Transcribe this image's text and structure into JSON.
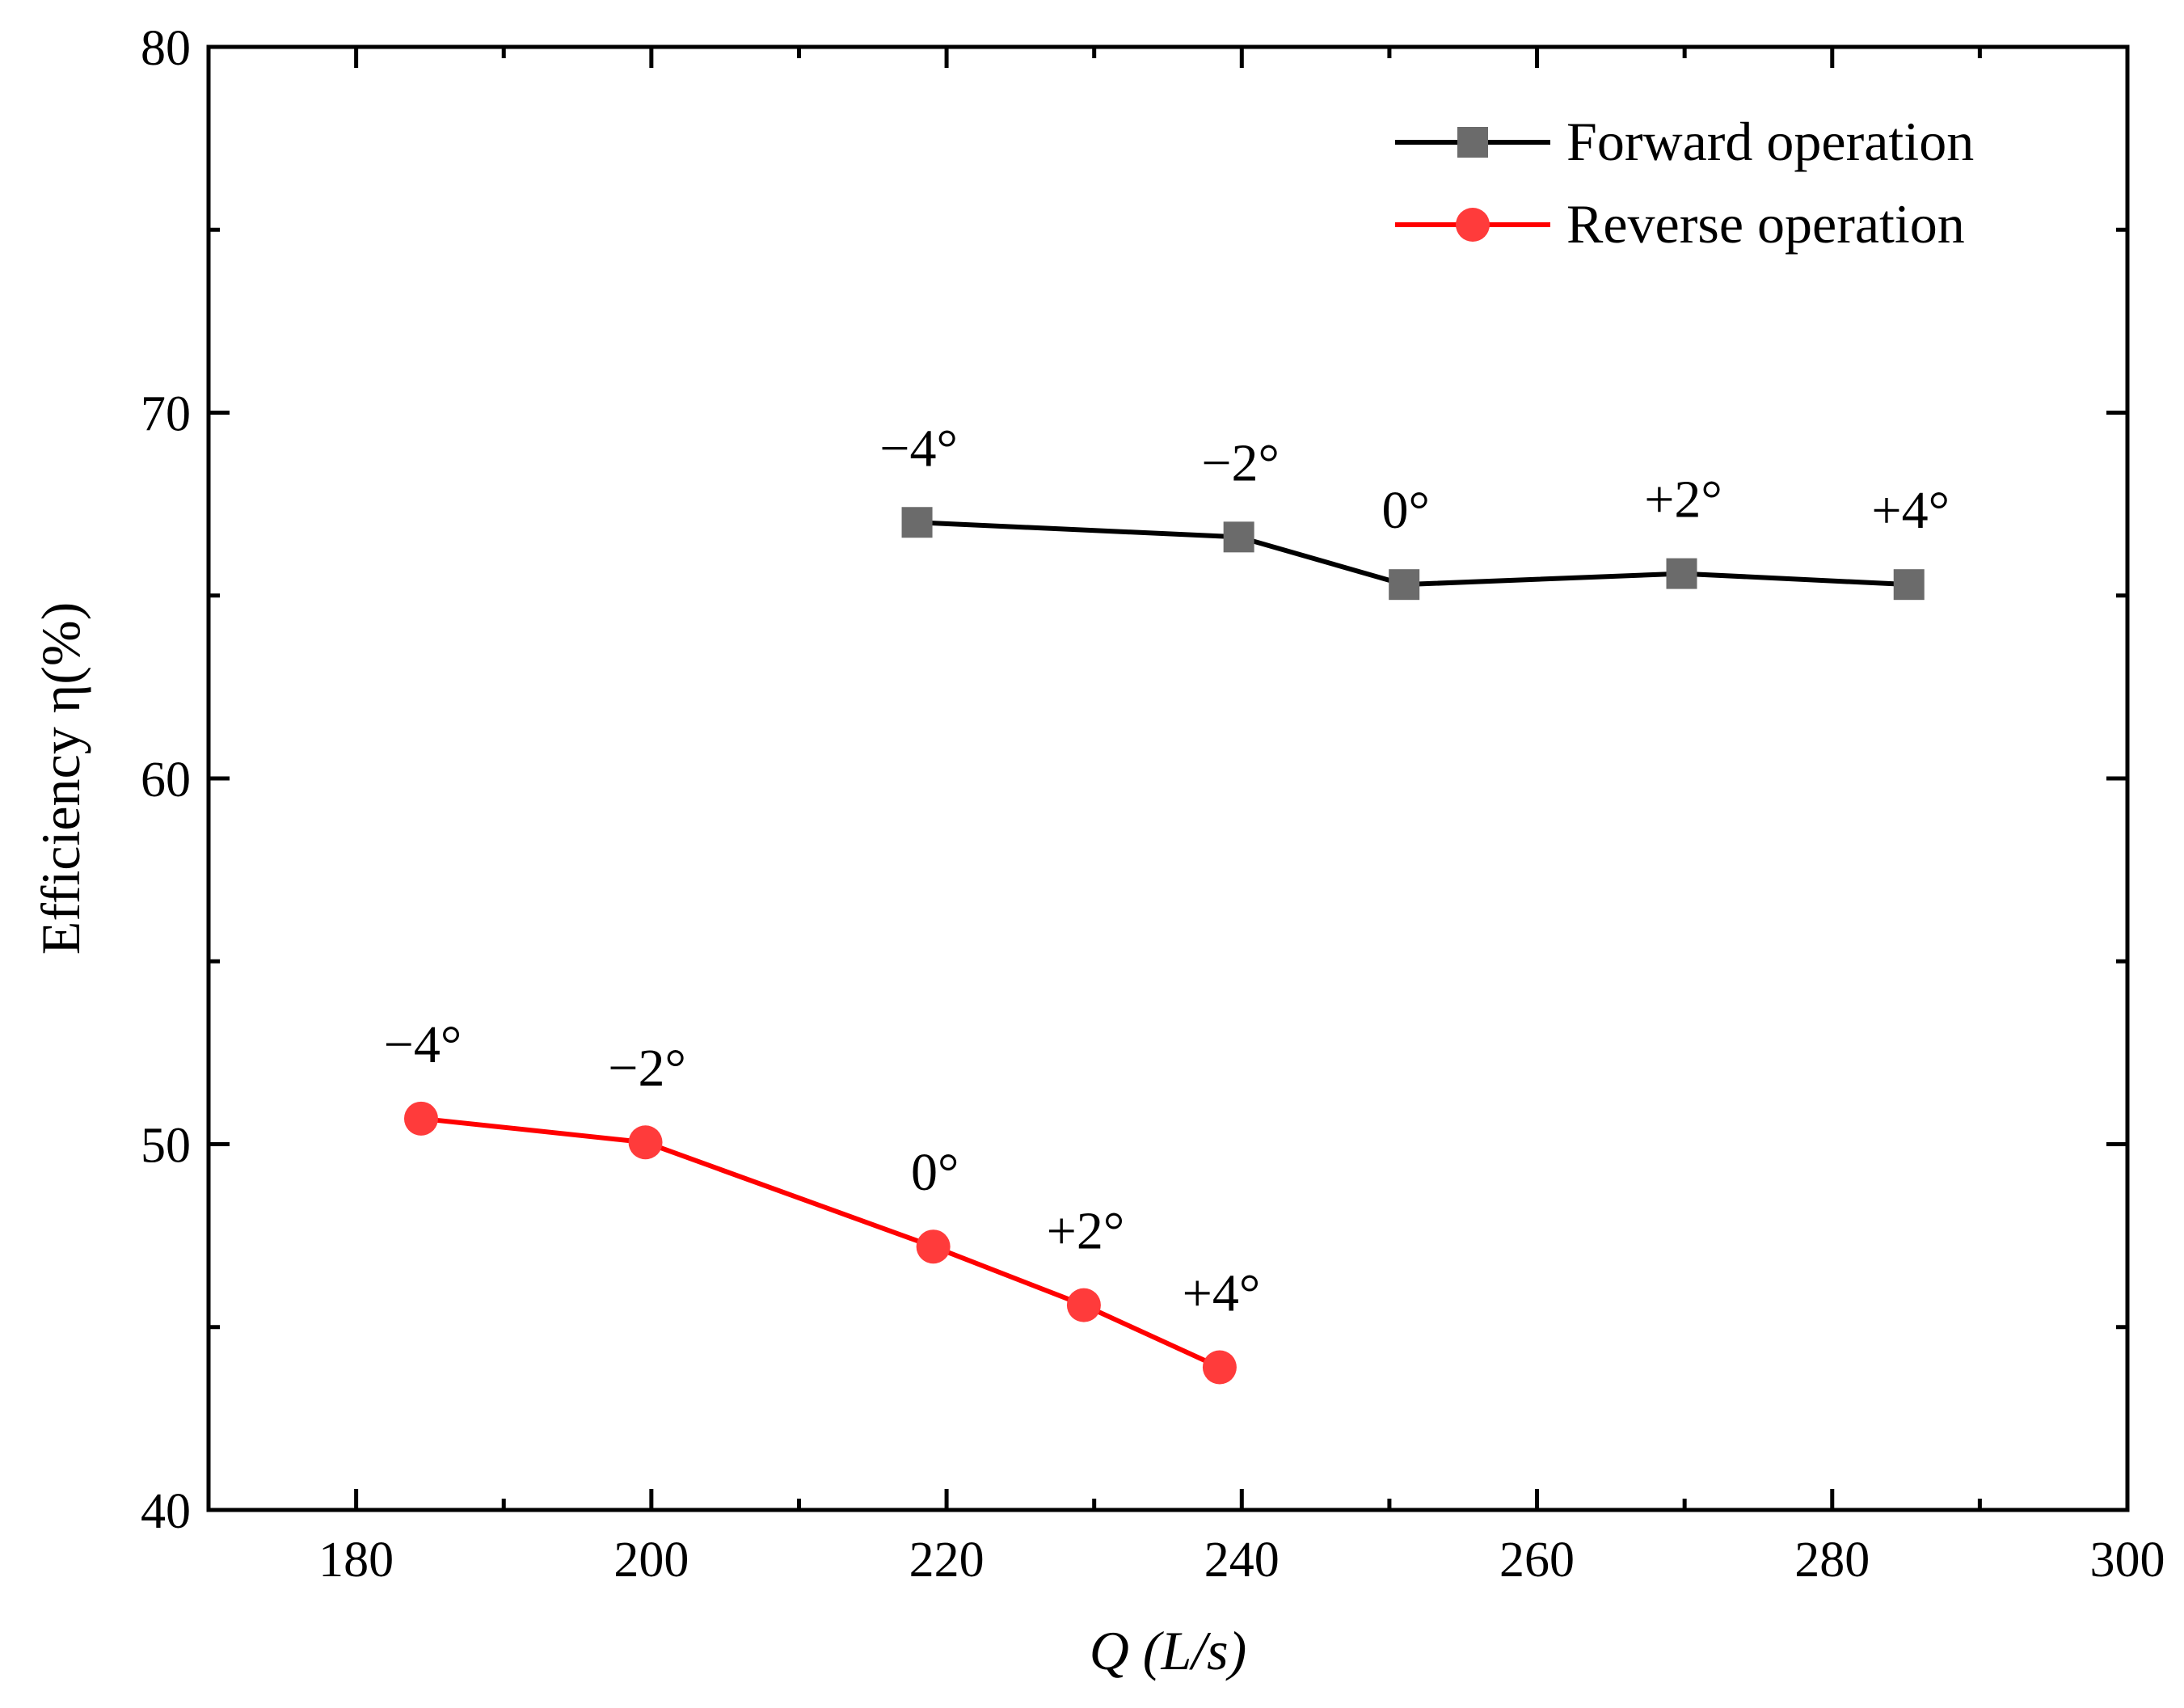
{
  "chart_data": {
    "type": "line",
    "xlabel": "Q (L/s)",
    "ylabel": "Efficiency η(%)",
    "xlim": [
      170,
      300
    ],
    "ylim": [
      40,
      80
    ],
    "x_ticks": [
      180,
      200,
      220,
      240,
      260,
      280,
      300
    ],
    "x_tick_labels": [
      "180",
      "200",
      "220",
      "240",
      "260",
      "280",
      "300"
    ],
    "y_ticks": [
      40,
      50,
      60,
      70,
      80
    ],
    "y_tick_labels": [
      "40",
      "50",
      "60",
      "70",
      "80"
    ],
    "grid": false,
    "legend_position": "top-right",
    "series": [
      {
        "name": "Forward operation",
        "color": "#000000",
        "marker": "square",
        "marker_color": "#6b6b6b",
        "x": [
          218.0,
          239.8,
          251.0,
          269.8,
          285.2
        ],
        "y": [
          67.0,
          66.6,
          65.3,
          65.6,
          65.3
        ],
        "labels": [
          "−4°",
          "−2°",
          "0°",
          "+2°",
          "+4°"
        ]
      },
      {
        "name": "Reverse operation",
        "color": "#ff0000",
        "marker": "circle",
        "marker_color": "#ff3b3b",
        "x": [
          184.4,
          199.6,
          219.1,
          229.3,
          238.5
        ],
        "y": [
          50.7,
          50.05,
          47.2,
          45.6,
          43.9
        ],
        "labels": [
          "−4°",
          "−2°",
          "0°",
          "+2°",
          "+4°"
        ]
      }
    ]
  }
}
